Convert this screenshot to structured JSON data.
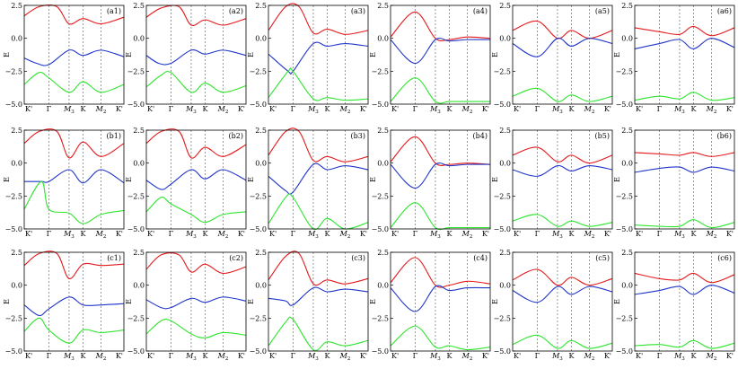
{
  "figure": {
    "ylabel": "E",
    "yticks": [
      "2.5",
      "0.0",
      "−2.5",
      "−5.0"
    ],
    "ylim": [
      -5.0,
      2.5
    ],
    "xticks": [
      "K'",
      "Γ",
      "M3",
      "K",
      "M2",
      "K'"
    ],
    "xticks_sub": [
      null,
      null,
      "3",
      null,
      "2",
      null
    ],
    "xticks_italic": [
      false,
      false,
      true,
      false,
      true,
      false
    ],
    "colors": {
      "upper": "#e41a1c",
      "middle": "#1f35c8",
      "lower": "#2ee52e",
      "axis": "#000000",
      "dash": "#555555"
    }
  },
  "chart_data": [
    {
      "type": "line",
      "label": "(a1)",
      "x": [
        0,
        1,
        2,
        3,
        4,
        5
      ],
      "series": [
        {
          "values": [
            1.7,
            2.4,
            2.4,
            1.1,
            1.5,
            1.1,
            1.6
          ],
          "x": [
            0,
            0.6,
            1.4,
            2,
            3,
            4,
            5
          ]
        },
        {
          "values": [
            -1.5,
            -1.9,
            -2.0,
            -0.9,
            -1.3,
            -0.9,
            -1.4
          ],
          "x": [
            0,
            0.5,
            1,
            2,
            3,
            4,
            5
          ]
        },
        {
          "values": [
            -3.5,
            -2.6,
            -3.0,
            -4.1,
            -3.3,
            -4.1,
            -3.5
          ],
          "x": [
            0,
            0.6,
            1,
            2,
            3,
            4,
            5
          ]
        }
      ]
    },
    {
      "type": "line",
      "label": "(a2)",
      "series": [
        {
          "values": [
            1.6,
            2.3,
            2.4,
            1.0,
            1.4,
            1.0,
            1.5
          ],
          "x": [
            0,
            0.6,
            1.4,
            2,
            3,
            4,
            5
          ]
        },
        {
          "values": [
            -1.3,
            -1.9,
            -1.9,
            -0.9,
            -1.2,
            -0.9,
            -1.3
          ],
          "x": [
            0,
            0.5,
            1,
            2,
            3,
            4,
            5
          ]
        },
        {
          "values": [
            -3.7,
            -2.8,
            -2.6,
            -4.1,
            -3.4,
            -4.1,
            -3.6
          ],
          "x": [
            0,
            0.6,
            1,
            2,
            3,
            4,
            5
          ]
        }
      ]
    },
    {
      "type": "line",
      "label": "(a3)",
      "series": [
        {
          "values": [
            0.6,
            2.4,
            2.4,
            0.4,
            0.7,
            0.3,
            0.6
          ],
          "x": [
            0,
            0.7,
            1.3,
            2,
            3,
            4,
            5
          ]
        },
        {
          "values": [
            -1.2,
            -2.5,
            -2.5,
            -0.4,
            -0.6,
            -0.4,
            -0.6
          ],
          "x": [
            0,
            0.8,
            1,
            2,
            3,
            4,
            5
          ]
        },
        {
          "values": [
            -4.5,
            -2.5,
            -2.5,
            -4.6,
            -4.5,
            -4.7,
            -4.6
          ],
          "x": [
            0,
            0.8,
            1,
            2,
            3,
            4,
            5
          ]
        }
      ]
    },
    {
      "type": "line",
      "label": "(a4)",
      "series": [
        {
          "values": [
            0.1,
            2.0,
            0.0,
            -0.1,
            0.1,
            0.0
          ],
          "x": [
            0,
            1,
            2,
            3,
            4,
            5
          ]
        },
        {
          "values": [
            -0.1,
            -1.9,
            -0.1,
            -0.2,
            -0.1,
            -0.1
          ],
          "x": [
            0,
            1,
            2,
            3,
            4,
            5
          ]
        },
        {
          "values": [
            -4.8,
            -3.0,
            -4.8,
            -4.8,
            -4.8,
            -4.8
          ],
          "x": [
            0,
            1,
            2,
            3,
            4,
            5
          ]
        }
      ]
    },
    {
      "type": "line",
      "label": "(a5)",
      "series": [
        {
          "values": [
            0.6,
            1.3,
            0.0,
            0.6,
            0.0,
            0.6
          ],
          "x": [
            0,
            1,
            2,
            3,
            4,
            5
          ]
        },
        {
          "values": [
            -0.4,
            -1.4,
            0.0,
            -0.6,
            0.0,
            -0.4
          ],
          "x": [
            0,
            1,
            2,
            3,
            4,
            5
          ]
        },
        {
          "values": [
            -4.4,
            -3.8,
            -4.8,
            -4.3,
            -4.8,
            -4.4
          ],
          "x": [
            0,
            1,
            2,
            3,
            4,
            5
          ]
        }
      ]
    },
    {
      "type": "line",
      "label": "(a6)",
      "series": [
        {
          "values": [
            0.8,
            0.5,
            0.3,
            0.9,
            0.2,
            0.8
          ],
          "x": [
            0,
            1,
            2,
            3,
            4,
            5
          ]
        },
        {
          "values": [
            -0.8,
            -0.4,
            -0.1,
            -0.8,
            0.0,
            -0.7
          ],
          "x": [
            0,
            1,
            2,
            3,
            4,
            5
          ]
        },
        {
          "values": [
            -4.7,
            -4.4,
            -4.6,
            -4.1,
            -4.7,
            -4.5
          ],
          "x": [
            0,
            1,
            2,
            3,
            4,
            5
          ]
        }
      ]
    },
    {
      "type": "line",
      "label": "(b1)",
      "series": [
        {
          "values": [
            1.5,
            2.4,
            2.4,
            0.4,
            1.6,
            0.5,
            1.5
          ],
          "x": [
            0,
            0.6,
            1.4,
            2,
            3,
            4,
            5
          ]
        },
        {
          "values": [
            -1.4,
            -1.4,
            -1.4,
            -0.5,
            -1.5,
            -0.5,
            -1.5
          ],
          "x": [
            0,
            0.7,
            1,
            2,
            3,
            4,
            5
          ]
        },
        {
          "values": [
            -3.5,
            -1.4,
            -3.5,
            -3.8,
            -4.6,
            -3.9,
            -3.6
          ],
          "x": [
            0,
            0.7,
            1,
            2,
            3,
            4,
            5
          ]
        }
      ]
    },
    {
      "type": "line",
      "label": "(b2)",
      "series": [
        {
          "values": [
            1.5,
            2.4,
            2.4,
            0.4,
            1.2,
            0.5,
            1.4
          ],
          "x": [
            0,
            0.6,
            1.4,
            2,
            3,
            4,
            5
          ]
        },
        {
          "values": [
            -1.3,
            -2.0,
            -1.6,
            -0.5,
            -1.2,
            -0.5,
            -1.3
          ],
          "x": [
            0,
            0.6,
            1,
            2,
            3,
            4,
            5
          ]
        },
        {
          "values": [
            -3.7,
            -2.6,
            -3.1,
            -3.9,
            -4.5,
            -3.9,
            -3.7
          ],
          "x": [
            0,
            0.6,
            1,
            2,
            3,
            4,
            5
          ]
        }
      ]
    },
    {
      "type": "line",
      "label": "(b3)",
      "series": [
        {
          "values": [
            0.6,
            2.4,
            2.4,
            0.2,
            0.5,
            0.1,
            0.5
          ],
          "x": [
            0,
            0.7,
            1.3,
            2,
            3,
            4,
            5
          ]
        },
        {
          "values": [
            -1.0,
            -2.1,
            -2.2,
            -0.1,
            -0.5,
            -0.2,
            -0.5
          ],
          "x": [
            0,
            0.7,
            1,
            2,
            3,
            4,
            5
          ]
        },
        {
          "values": [
            -4.6,
            -2.6,
            -2.6,
            -5.0,
            -4.2,
            -5.0,
            -4.5
          ],
          "x": [
            0,
            0.7,
            1,
            2,
            3,
            4,
            5
          ]
        }
      ]
    },
    {
      "type": "line",
      "label": "(b4)",
      "series": [
        {
          "values": [
            0.1,
            2.0,
            0.0,
            -0.1,
            0.0,
            -0.1
          ],
          "x": [
            0,
            1,
            2,
            3,
            4,
            5
          ]
        },
        {
          "values": [
            -0.1,
            -1.9,
            -0.1,
            -0.2,
            -0.1,
            -0.1
          ],
          "x": [
            0,
            1,
            2,
            3,
            4,
            5
          ]
        },
        {
          "values": [
            -4.9,
            -3.0,
            -4.9,
            -4.9,
            -4.9,
            -4.9
          ],
          "x": [
            0,
            1,
            2,
            3,
            4,
            5
          ]
        }
      ]
    },
    {
      "type": "line",
      "label": "(b5)",
      "series": [
        {
          "values": [
            0.6,
            1.2,
            0.1,
            0.6,
            0.0,
            0.6
          ],
          "x": [
            0,
            1,
            2,
            3,
            4,
            5
          ]
        },
        {
          "values": [
            -0.5,
            -1.0,
            -0.2,
            -0.6,
            -0.2,
            -0.5
          ],
          "x": [
            0,
            1,
            2,
            3,
            4,
            5
          ]
        },
        {
          "values": [
            -4.4,
            -3.9,
            -4.8,
            -4.4,
            -4.8,
            -4.5
          ],
          "x": [
            0,
            1,
            2,
            3,
            4,
            5
          ]
        }
      ]
    },
    {
      "type": "line",
      "label": "(b6)",
      "series": [
        {
          "values": [
            0.8,
            0.7,
            0.6,
            0.8,
            0.5,
            0.8
          ],
          "x": [
            0,
            1,
            2,
            3,
            4,
            5
          ]
        },
        {
          "values": [
            -0.7,
            -0.4,
            -0.3,
            -0.7,
            -0.3,
            -0.6
          ],
          "x": [
            0,
            1,
            2,
            3,
            4,
            5
          ]
        },
        {
          "values": [
            -4.7,
            -4.8,
            -4.8,
            -4.3,
            -4.9,
            -4.5
          ],
          "x": [
            0,
            1,
            2,
            3,
            4,
            5
          ]
        }
      ]
    },
    {
      "type": "line",
      "label": "(c1)",
      "series": [
        {
          "values": [
            1.5,
            2.4,
            2.4,
            0.5,
            1.6,
            1.5,
            1.6
          ],
          "x": [
            0,
            0.6,
            1.4,
            2,
            3,
            4,
            5
          ]
        },
        {
          "values": [
            -1.5,
            -2.3,
            -1.8,
            -0.9,
            -1.5,
            -1.5,
            -1.4
          ],
          "x": [
            0,
            0.6,
            1,
            2,
            3,
            4,
            5
          ]
        },
        {
          "values": [
            -3.5,
            -2.5,
            -3.4,
            -4.4,
            -3.4,
            -3.6,
            -3.4
          ],
          "x": [
            0,
            0.6,
            1,
            2,
            3,
            4,
            5
          ]
        }
      ]
    },
    {
      "type": "line",
      "label": "(c2)",
      "series": [
        {
          "values": [
            1.2,
            2.3,
            2.3,
            1.0,
            1.6,
            0.9,
            1.4
          ],
          "x": [
            0,
            0.6,
            1.4,
            2,
            3,
            4,
            5
          ]
        },
        {
          "values": [
            -1.1,
            -1.7,
            -1.7,
            -1.0,
            -1.3,
            -0.9,
            -1.2
          ],
          "x": [
            0,
            0.6,
            1,
            2,
            3,
            4,
            5
          ]
        },
        {
          "values": [
            -3.7,
            -2.7,
            -2.7,
            -3.7,
            -4.0,
            -3.6,
            -3.8
          ],
          "x": [
            0,
            0.6,
            1,
            2,
            3,
            4,
            5
          ]
        }
      ]
    },
    {
      "type": "line",
      "label": "(c3)",
      "series": [
        {
          "values": [
            0.4,
            2.2,
            2.4,
            0.1,
            0.4,
            0.1,
            0.5
          ],
          "x": [
            0,
            0.7,
            1.3,
            2,
            3,
            4,
            5
          ]
        },
        {
          "values": [
            -1.0,
            -1.2,
            -1.5,
            -0.2,
            -0.5,
            -0.3,
            -0.5
          ],
          "x": [
            0,
            0.7,
            1,
            2,
            3,
            4,
            5
          ]
        },
        {
          "values": [
            -4.6,
            -2.8,
            -2.6,
            -4.9,
            -4.3,
            -4.6,
            -4.2
          ],
          "x": [
            0,
            0.7,
            1,
            2,
            3,
            4,
            5
          ]
        }
      ]
    },
    {
      "type": "line",
      "label": "(c4)",
      "series": [
        {
          "values": [
            0.2,
            2.1,
            0.0,
            0.0,
            0.3,
            0.1
          ],
          "x": [
            0,
            1,
            2,
            3,
            4,
            5
          ]
        },
        {
          "values": [
            -0.2,
            -2.0,
            -0.1,
            -0.4,
            -0.2,
            -0.2
          ],
          "x": [
            0,
            1,
            2,
            3,
            4,
            5
          ]
        },
        {
          "values": [
            -4.6,
            -3.1,
            -4.7,
            -4.6,
            -4.9,
            -4.7
          ],
          "x": [
            0,
            1,
            2,
            3,
            4,
            5
          ]
        }
      ]
    },
    {
      "type": "line",
      "label": "(c5)",
      "series": [
        {
          "values": [
            0.4,
            1.2,
            0.0,
            0.6,
            0.0,
            0.5
          ],
          "x": [
            0,
            1,
            2,
            3,
            4,
            5
          ]
        },
        {
          "values": [
            -0.4,
            -1.3,
            -0.1,
            -0.7,
            -0.1,
            -0.5
          ],
          "x": [
            0,
            1,
            2,
            3,
            4,
            5
          ]
        },
        {
          "values": [
            -4.5,
            -3.8,
            -4.8,
            -4.2,
            -4.8,
            -4.4
          ],
          "x": [
            0,
            1,
            2,
            3,
            4,
            5
          ]
        }
      ]
    },
    {
      "type": "line",
      "label": "(c6)",
      "series": [
        {
          "values": [
            0.9,
            0.5,
            0.4,
            0.9,
            0.2,
            0.8
          ],
          "x": [
            0,
            1,
            2,
            3,
            4,
            5
          ]
        },
        {
          "values": [
            -0.7,
            -0.4,
            -0.1,
            -0.7,
            0.0,
            -0.6
          ],
          "x": [
            0,
            1,
            2,
            3,
            4,
            5
          ]
        },
        {
          "values": [
            -4.6,
            -4.5,
            -4.7,
            -4.2,
            -4.8,
            -4.4
          ],
          "x": [
            0,
            1,
            2,
            3,
            4,
            5
          ]
        }
      ]
    }
  ]
}
